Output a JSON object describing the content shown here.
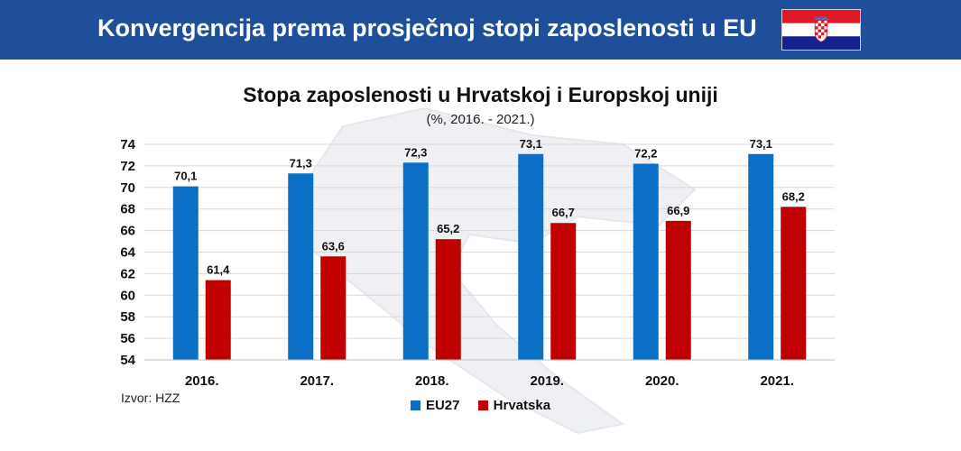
{
  "header": {
    "title": "Konvergencija prema prosječnoj stopi zaposlenosti u EU",
    "background": "#1f4e9a",
    "flag": {
      "icon": "croatia-flag-icon",
      "colors": [
        "#e0182a",
        "#ffffff",
        "#16218f"
      ]
    }
  },
  "source": "Izvor: HZZ",
  "chart_data": {
    "type": "bar",
    "title": "Stopa zaposlenosti u Hrvatskoj i Europskoj uniji",
    "subtitle": "(%, 2016. - 2021.)",
    "categories": [
      "2016.",
      "2017.",
      "2018.",
      "2019.",
      "2020.",
      "2021."
    ],
    "series": [
      {
        "name": "EU27",
        "color": "#0b6fc6",
        "values": [
          70.1,
          71.3,
          72.3,
          73.1,
          72.2,
          73.1
        ],
        "labels": [
          "70,1",
          "71,3",
          "72,3",
          "73,1",
          "72,2",
          "73,1"
        ]
      },
      {
        "name": "Hrvatska",
        "color": "#c00000",
        "values": [
          61.4,
          63.6,
          65.2,
          66.7,
          66.9,
          68.2
        ],
        "labels": [
          "61,4",
          "63,6",
          "65,2",
          "66,7",
          "66,9",
          "68,2"
        ]
      }
    ],
    "ylim": [
      54,
      74
    ],
    "yticks": [
      54,
      56,
      58,
      60,
      62,
      64,
      66,
      68,
      70,
      72,
      74
    ],
    "grid": true,
    "legend_position": "bottom"
  }
}
